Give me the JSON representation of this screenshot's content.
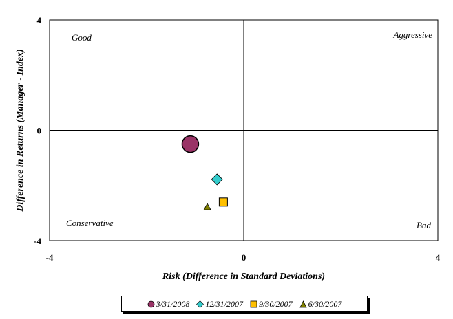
{
  "chart_data": {
    "type": "scatter",
    "xlabel": "Risk (Difference in Standard Deviations)",
    "ylabel": "Difference in Returns (Manager - Index)",
    "xlim": [
      -4,
      4
    ],
    "ylim": [
      -4,
      4
    ],
    "x_ticks": [
      "-4",
      "0",
      "4"
    ],
    "y_ticks": [
      "4",
      "0",
      "-4"
    ],
    "quadrant_labels": {
      "top_left": "Good",
      "top_right": "Aggressive",
      "bottom_left": "Conservative",
      "bottom_right": "Bad"
    },
    "grid": false,
    "legend_position": "bottom",
    "series": [
      {
        "name": "3/31/2008",
        "marker": "circle",
        "size": "large",
        "color": "#993366",
        "x": -1.1,
        "y": -0.5
      },
      {
        "name": "12/31/2007",
        "marker": "diamond",
        "size": "small",
        "color": "#33CCCC",
        "x": -0.55,
        "y": -1.78
      },
      {
        "name": "9/30/2007",
        "marker": "square",
        "size": "small",
        "color": "#FFC000",
        "x": -0.42,
        "y": -2.6
      },
      {
        "name": "6/30/2007",
        "marker": "triangle",
        "size": "small",
        "color": "#808000",
        "x": -0.75,
        "y": -2.78
      }
    ]
  }
}
